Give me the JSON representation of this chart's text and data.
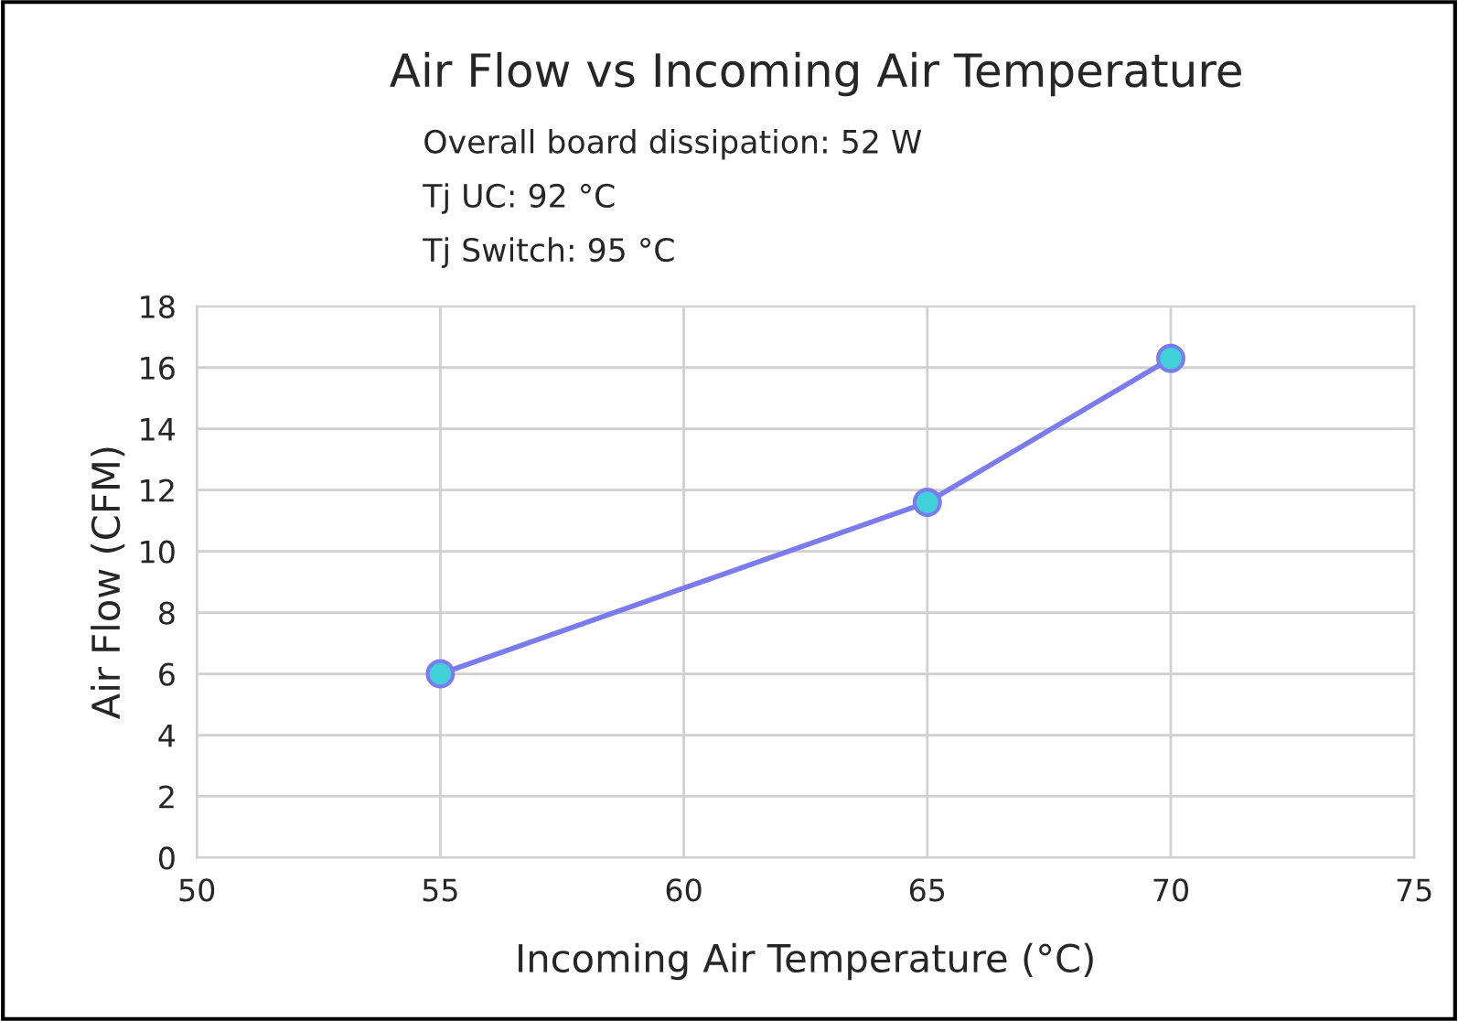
{
  "chart_data": {
    "type": "line",
    "title": "Air Flow vs Incoming Air Temperature",
    "annotations": [
      "Overall board dissipation: 52 W",
      "Tj UC: 92 °C",
      "Tj Switch: 95 °C"
    ],
    "xlabel": "Incoming Air Temperature (°C)",
    "ylabel": "Air Flow (CFM)",
    "x": [
      55,
      65,
      70
    ],
    "series": [
      {
        "color": "#7b7bf0",
        "values": [
          6,
          11.6,
          16.3
        ]
      }
    ],
    "xlim": [
      50,
      75
    ],
    "xticks": [
      50,
      55,
      60,
      65,
      70,
      75
    ],
    "ylim": [
      0,
      18
    ],
    "yticks": [
      0,
      2,
      4,
      6,
      8,
      10,
      12,
      14,
      16,
      18
    ],
    "grid": true,
    "marker": "circle",
    "line_style": "solid"
  }
}
